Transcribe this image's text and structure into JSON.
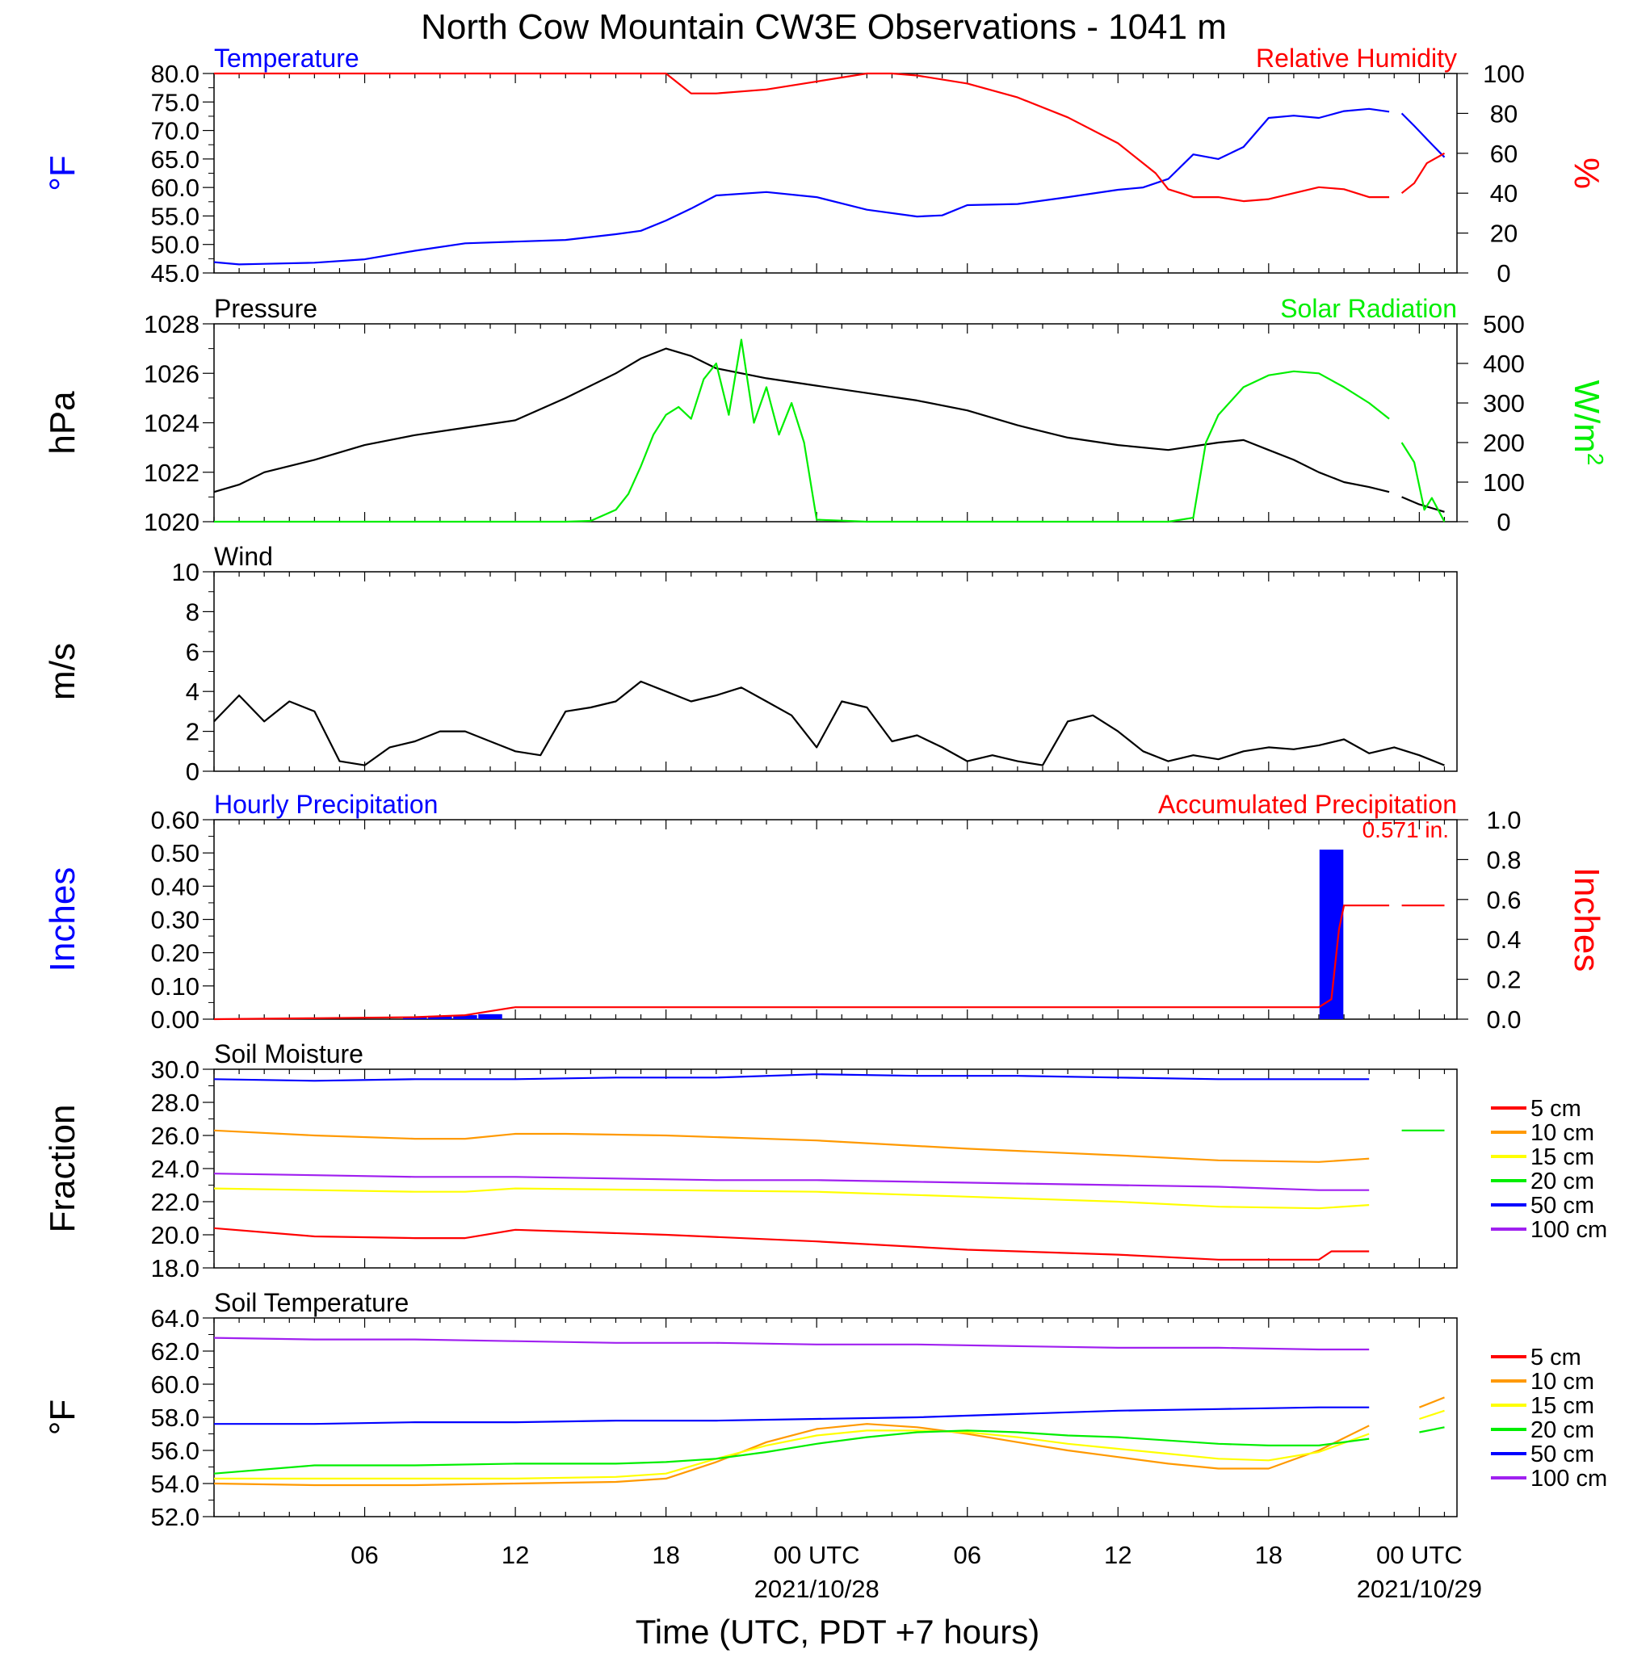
{
  "title": "North Cow Mountain CW3E Observations - 1041 m",
  "xlabel": "Time (UTC, PDT +7 hours)",
  "x_ticks": [
    {
      "hour": 6,
      "label": "06",
      "date": ""
    },
    {
      "hour": 12,
      "label": "12",
      "date": ""
    },
    {
      "hour": 18,
      "label": "18",
      "date": ""
    },
    {
      "hour": 24,
      "label": "00 UTC",
      "date": "2021/10/28"
    },
    {
      "hour": 30,
      "label": "06",
      "date": ""
    },
    {
      "hour": 36,
      "label": "12",
      "date": ""
    },
    {
      "hour": 42,
      "label": "18",
      "date": ""
    },
    {
      "hour": 48,
      "label": "00 UTC",
      "date": "2021/10/29"
    }
  ],
  "colors": {
    "blue": "#0000ff",
    "red": "#ff0000",
    "green": "#00ee00",
    "black": "#000000",
    "orange": "#ff9900",
    "yellow": "#ffff00",
    "purple": "#a020f0"
  },
  "chart_data": [
    {
      "type": "line",
      "title_left": "Temperature",
      "title_right": "Relative Humidity",
      "ylabel": "°F",
      "ylabel_right": "%",
      "ylim": [
        45,
        80
      ],
      "yticks": [
        "45.0",
        "50.0",
        "55.0",
        "60.0",
        "65.0",
        "70.0",
        "75.0",
        "80.0"
      ],
      "ylim_right": [
        0,
        100
      ],
      "yticks_right": [
        "0",
        "20",
        "40",
        "60",
        "80",
        "100"
      ],
      "series": [
        {
          "axis": "left",
          "color": "#0000ff",
          "x": [
            0,
            1,
            2,
            4,
            6,
            8,
            10,
            12,
            14,
            16,
            17,
            18,
            19,
            20,
            22,
            24,
            26,
            28,
            29,
            30,
            32,
            34,
            36,
            37,
            38,
            39,
            40,
            41,
            42,
            43,
            44,
            45,
            46,
            46.8,
            47.3,
            47.8,
            48.3,
            49
          ],
          "y": [
            46.9,
            46.5,
            46.6,
            46.8,
            47.4,
            48.9,
            50.2,
            50.5,
            50.8,
            51.8,
            52.4,
            54.2,
            56.3,
            58.6,
            59.2,
            58.3,
            56.1,
            54.9,
            55.1,
            56.9,
            57.1,
            58.3,
            59.6,
            60.0,
            61.5,
            65.8,
            65.0,
            67.1,
            72.2,
            72.6,
            72.2,
            73.4,
            73.8,
            73.3,
            73.0,
            70.8,
            68.5,
            65.3
          ]
        },
        {
          "axis": "right",
          "color": "#ff0000",
          "x": [
            0,
            17,
            18,
            18.5,
            19,
            20,
            22,
            24,
            26,
            27,
            28,
            30,
            32,
            34,
            36,
            37,
            37.5,
            38,
            39,
            40,
            41,
            42,
            43,
            44,
            45,
            46,
            46.8,
            47.3,
            47.8,
            48.3,
            49
          ],
          "y": [
            100,
            100,
            100,
            95,
            90,
            90,
            92,
            96,
            100,
            100,
            99,
            95,
            88,
            78,
            65,
            55,
            50,
            42,
            38,
            38,
            36,
            37,
            40,
            43,
            42,
            38,
            38,
            40,
            45,
            55,
            60
          ]
        }
      ],
      "gaps": [
        [
          46.8,
          47.3
        ]
      ]
    },
    {
      "type": "line",
      "title_left": "Pressure",
      "title_right": "Solar Radiation",
      "ylabel": "hPa",
      "ylabel_right": "W/m",
      "ylabel_right_sup": "2",
      "ylim": [
        1020,
        1028
      ],
      "yticks": [
        "1020",
        "1022",
        "1024",
        "1026",
        "1028"
      ],
      "ylim_right": [
        0,
        500
      ],
      "yticks_right": [
        "0",
        "100",
        "200",
        "300",
        "400",
        "500"
      ],
      "series": [
        {
          "axis": "left",
          "color": "#000000",
          "x": [
            0,
            1,
            2,
            4,
            6,
            8,
            10,
            12,
            14,
            16,
            17,
            18,
            19,
            20,
            22,
            24,
            26,
            28,
            30,
            32,
            34,
            36,
            38,
            40,
            41,
            42,
            43,
            44,
            45,
            46,
            46.8,
            47.3,
            48,
            49
          ],
          "y": [
            1021.2,
            1021.5,
            1022.0,
            1022.5,
            1023.1,
            1023.5,
            1023.8,
            1024.1,
            1025.0,
            1026.0,
            1026.6,
            1027.0,
            1026.7,
            1026.2,
            1025.8,
            1025.5,
            1025.2,
            1024.9,
            1024.5,
            1023.9,
            1023.4,
            1023.1,
            1022.9,
            1023.2,
            1023.3,
            1022.9,
            1022.5,
            1022.0,
            1021.6,
            1021.4,
            1021.2,
            1021.0,
            1020.7,
            1020.4
          ]
        },
        {
          "axis": "right",
          "color": "#00ee00",
          "x": [
            0,
            14,
            15,
            16,
            16.5,
            17,
            17.5,
            18,
            18.5,
            19,
            19.5,
            20,
            20.5,
            21,
            21.5,
            22,
            22.5,
            23,
            23.5,
            24,
            26,
            38,
            39,
            39.5,
            40,
            41,
            42,
            43,
            44,
            45,
            46,
            46.8,
            47.3,
            47.8,
            48.2,
            48.5,
            49
          ],
          "y": [
            0,
            0,
            2,
            30,
            70,
            140,
            220,
            270,
            290,
            260,
            360,
            400,
            270,
            460,
            250,
            340,
            220,
            300,
            200,
            5,
            0,
            0,
            10,
            200,
            270,
            340,
            370,
            380,
            375,
            340,
            300,
            260,
            200,
            150,
            30,
            60,
            0
          ]
        }
      ],
      "gaps": [
        [
          46.8,
          47.3
        ]
      ]
    },
    {
      "type": "line",
      "title_left": "Wind",
      "ylabel": "m/s",
      "ylim": [
        0,
        10
      ],
      "yticks": [
        "0",
        "2",
        "4",
        "6",
        "8",
        "10"
      ],
      "series": [
        {
          "color": "#000000",
          "x": [
            0,
            1,
            2,
            3,
            4,
            5,
            6,
            7,
            8,
            9,
            10,
            11,
            12,
            13,
            14,
            15,
            16,
            17,
            18,
            19,
            20,
            21,
            22,
            23,
            24,
            25,
            26,
            27,
            28,
            29,
            30,
            31,
            32,
            33,
            34,
            35,
            36,
            37,
            38,
            39,
            40,
            41,
            42,
            43,
            44,
            45,
            46,
            47,
            48,
            49
          ],
          "y": [
            2.5,
            3.8,
            2.5,
            3.5,
            3.0,
            0.5,
            0.3,
            1.2,
            1.5,
            2.0,
            2.0,
            1.5,
            1.0,
            0.8,
            3.0,
            3.2,
            3.5,
            4.5,
            4.0,
            3.5,
            3.8,
            4.2,
            3.5,
            2.8,
            1.2,
            3.5,
            3.2,
            1.5,
            1.8,
            1.2,
            0.5,
            0.8,
            0.5,
            0.3,
            2.5,
            2.8,
            2.0,
            1.0,
            0.5,
            0.8,
            0.6,
            1.0,
            1.2,
            1.1,
            1.3,
            1.6,
            0.9,
            1.2,
            0.8,
            0.3
          ]
        }
      ]
    },
    {
      "type": "bar",
      "title_left": "Hourly Precipitation",
      "title_right": "Accumulated Precipitation",
      "ylabel": "Inches",
      "ylabel_right": "Inches",
      "ylim": [
        0,
        0.6
      ],
      "yticks": [
        "0.00",
        "0.10",
        "0.20",
        "0.30",
        "0.40",
        "0.50",
        "0.60"
      ],
      "ylim_right": [
        0,
        1.0
      ],
      "yticks_right": [
        "0.0",
        "0.2",
        "0.4",
        "0.6",
        "0.8",
        "1.0"
      ],
      "bars": {
        "x": [
          8,
          9,
          10,
          11,
          44.5
        ],
        "values": [
          0.005,
          0.01,
          0.012,
          0.015,
          0.51
        ]
      },
      "accum": {
        "x": [
          0,
          4,
          8,
          10,
          10.5,
          11,
          12,
          44,
          44.5,
          44.8,
          45,
          46,
          46.8,
          47.3,
          49
        ],
        "y": [
          0,
          0.005,
          0.01,
          0.02,
          0.03,
          0.04,
          0.06,
          0.06,
          0.1,
          0.45,
          0.57,
          0.57,
          0.57,
          0.57,
          0.57
        ]
      },
      "gaps": [
        [
          46.8,
          47.3
        ]
      ],
      "annotation": "0.571 in."
    },
    {
      "type": "line",
      "title_left": "Soil Moisture",
      "ylabel": "Fraction",
      "ylim": [
        18,
        30
      ],
      "yticks": [
        "18.0",
        "20.0",
        "22.0",
        "24.0",
        "26.0",
        "28.0",
        "30.0"
      ],
      "legend": [
        "5 cm",
        "10 cm",
        "15 cm",
        "20 cm",
        "50 cm",
        "100 cm"
      ],
      "series": [
        {
          "name": "5 cm",
          "color": "#ff0000",
          "x": [
            0,
            4,
            8,
            10,
            12,
            14,
            18,
            24,
            30,
            36,
            40,
            44,
            44.5,
            46,
            49
          ],
          "y": [
            20.4,
            19.9,
            19.8,
            19.8,
            20.3,
            20.2,
            20.0,
            19.6,
            19.1,
            18.8,
            18.5,
            18.5,
            19.0,
            19.0,
            18.8
          ]
        },
        {
          "name": "10 cm",
          "color": "#ff9900",
          "x": [
            0,
            4,
            8,
            10,
            12,
            14,
            18,
            24,
            30,
            36,
            40,
            44,
            46,
            49
          ],
          "y": [
            26.3,
            26.0,
            25.8,
            25.8,
            26.1,
            26.1,
            26.0,
            25.7,
            25.2,
            24.8,
            24.5,
            24.4,
            24.6,
            24.6
          ]
        },
        {
          "name": "15 cm",
          "color": "#ffff00",
          "x": [
            0,
            4,
            8,
            10,
            12,
            18,
            24,
            30,
            36,
            40,
            44,
            46,
            49
          ],
          "y": [
            22.8,
            22.7,
            22.6,
            22.6,
            22.8,
            22.7,
            22.6,
            22.3,
            22.0,
            21.7,
            21.6,
            21.8,
            21.8
          ]
        },
        {
          "name": "20 cm",
          "color": "#00ee00",
          "x": [
            46.8,
            47.3,
            49
          ],
          "y": [
            26.3,
            26.3,
            26.3
          ]
        },
        {
          "name": "50 cm",
          "color": "#0000ff",
          "x": [
            0,
            4,
            8,
            12,
            16,
            20,
            24,
            28,
            32,
            36,
            40,
            44,
            46,
            49
          ],
          "y": [
            29.4,
            29.3,
            29.4,
            29.4,
            29.5,
            29.5,
            29.7,
            29.6,
            29.6,
            29.5,
            29.4,
            29.4,
            29.4,
            29.3
          ]
        },
        {
          "name": "100 cm",
          "color": "#a020f0",
          "x": [
            0,
            4,
            8,
            12,
            16,
            20,
            24,
            28,
            32,
            36,
            40,
            44,
            46,
            49
          ],
          "y": [
            23.7,
            23.6,
            23.5,
            23.5,
            23.4,
            23.3,
            23.3,
            23.2,
            23.1,
            23.0,
            22.9,
            22.7,
            22.7,
            22.7
          ]
        }
      ],
      "gaps": [
        [
          46.8,
          47.3
        ]
      ]
    },
    {
      "type": "line",
      "title_left": "Soil Temperature",
      "ylabel": "°F",
      "ylim": [
        52,
        64
      ],
      "yticks": [
        "52.0",
        "54.0",
        "56.0",
        "58.0",
        "60.0",
        "62.0",
        "64.0"
      ],
      "legend": [
        "5 cm",
        "10 cm",
        "15 cm",
        "20 cm",
        "50 cm",
        "100 cm"
      ],
      "series": [
        {
          "name": "10 cm",
          "color": "#ff9900",
          "x": [
            0,
            4,
            8,
            12,
            16,
            18,
            20,
            22,
            24,
            26,
            28,
            30,
            32,
            34,
            36,
            38,
            40,
            42,
            44,
            46,
            48,
            49
          ],
          "y": [
            54.0,
            53.9,
            53.9,
            54.0,
            54.1,
            54.3,
            55.3,
            56.5,
            57.3,
            57.6,
            57.4,
            57.0,
            56.5,
            56.0,
            55.6,
            55.2,
            54.9,
            54.9,
            56.0,
            57.5,
            58.6,
            59.2
          ]
        },
        {
          "name": "15 cm",
          "color": "#ffff00",
          "x": [
            0,
            4,
            8,
            12,
            16,
            18,
            20,
            22,
            24,
            26,
            28,
            30,
            32,
            34,
            36,
            38,
            40,
            42,
            44,
            46,
            48,
            49
          ],
          "y": [
            54.3,
            54.3,
            54.3,
            54.3,
            54.4,
            54.6,
            55.5,
            56.3,
            56.9,
            57.2,
            57.2,
            57.1,
            56.8,
            56.4,
            56.1,
            55.8,
            55.5,
            55.4,
            55.9,
            57.0,
            57.9,
            58.4
          ]
        },
        {
          "name": "20 cm",
          "color": "#00ee00",
          "x": [
            0,
            4,
            8,
            12,
            16,
            18,
            20,
            22,
            24,
            26,
            28,
            30,
            32,
            34,
            36,
            38,
            40,
            42,
            44,
            46,
            48,
            49
          ],
          "y": [
            54.6,
            55.1,
            55.1,
            55.2,
            55.2,
            55.3,
            55.5,
            55.9,
            56.4,
            56.8,
            57.1,
            57.2,
            57.1,
            56.9,
            56.8,
            56.6,
            56.4,
            56.3,
            56.3,
            56.7,
            57.1,
            57.4
          ]
        },
        {
          "name": "50 cm",
          "color": "#0000ff",
          "x": [
            0,
            4,
            8,
            12,
            16,
            20,
            24,
            28,
            32,
            36,
            40,
            44,
            46,
            49
          ],
          "y": [
            57.6,
            57.6,
            57.7,
            57.7,
            57.8,
            57.8,
            57.9,
            58.0,
            58.2,
            58.4,
            58.5,
            58.6,
            58.6,
            58.6
          ]
        },
        {
          "name": "100 cm",
          "color": "#a020f0",
          "x": [
            0,
            4,
            8,
            12,
            16,
            20,
            24,
            28,
            32,
            36,
            40,
            44,
            46,
            49
          ],
          "y": [
            62.8,
            62.7,
            62.7,
            62.6,
            62.5,
            62.5,
            62.4,
            62.4,
            62.3,
            62.2,
            62.2,
            62.1,
            62.1,
            62.2
          ]
        }
      ],
      "gaps": [
        [
          46.8,
          47.3
        ]
      ]
    }
  ]
}
